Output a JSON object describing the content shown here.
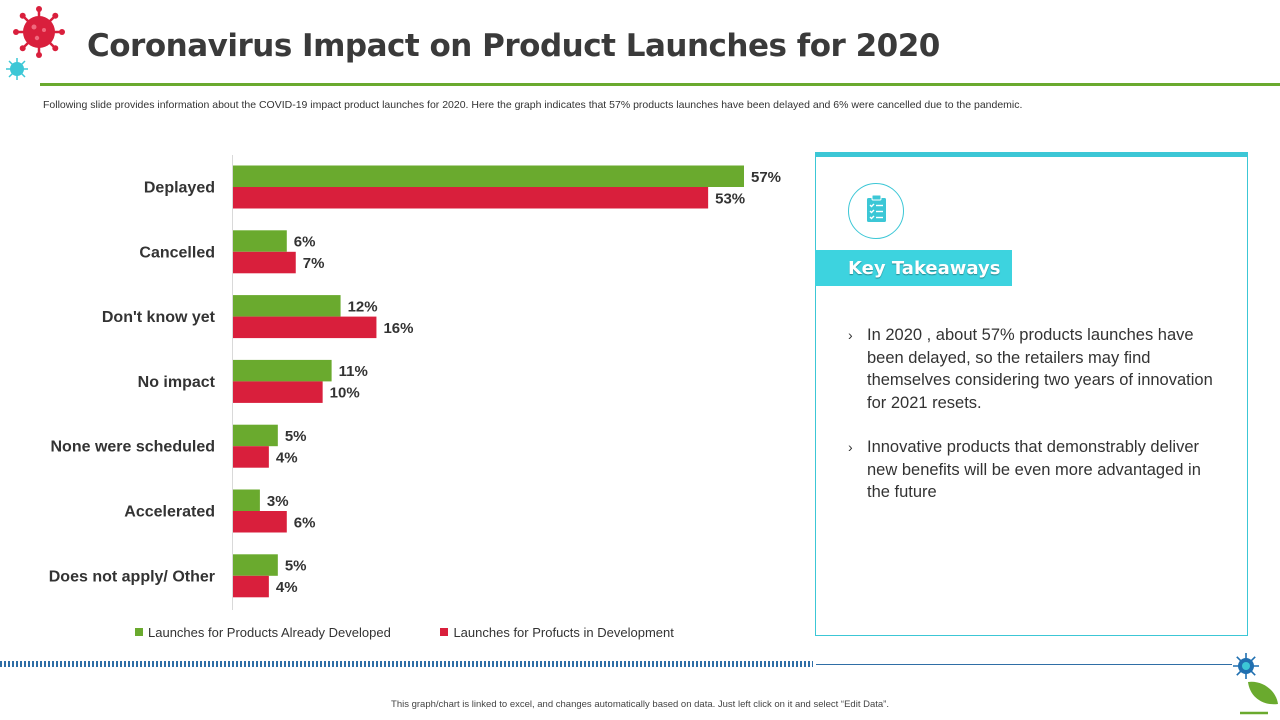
{
  "header": {
    "title": "Coronavirus Impact on Product Launches for 2020",
    "description": "Following slide provides information about the COVID-19 impact product launches for 2020. Here  the graph indicates that 57% products launches have been delayed and 6% were  cancelled due to the pandemic."
  },
  "chart_data": {
    "type": "bar",
    "orientation": "horizontal",
    "categories": [
      "Deplayed",
      "Cancelled",
      "Don't know yet",
      "No impact",
      "None were scheduled",
      "Accelerated",
      "Does not apply/ Other"
    ],
    "series": [
      {
        "name": "Launches for Products Already Developed",
        "color": "#6aaa2e",
        "values": [
          57,
          6,
          12,
          11,
          5,
          3,
          5
        ]
      },
      {
        "name": "Launches for Profucts in Development",
        "color": "#d91f3c",
        "values": [
          53,
          7,
          16,
          10,
          4,
          6,
          4
        ]
      }
    ],
    "value_suffix": "%",
    "legend_position": "bottom",
    "grid": false
  },
  "legend": {
    "items": [
      {
        "label": "Launches for Products Already Developed",
        "color": "#6aaa2e"
      },
      {
        "label": "Launches for Profucts in Development",
        "color": "#d91f3c"
      }
    ]
  },
  "takeaways": {
    "heading": "Key Takeaways",
    "icon": "clipboard-checklist-icon",
    "accent_color": "#3cc7d6",
    "bullets": [
      "In 2020 , about 57% products launches have been delayed, so the retailers may find themselves considering two years of innovation for 2021 resets.",
      "Innovative products that demonstrably deliver new benefits will be even more advantaged in the future"
    ]
  },
  "footer": {
    "note": "This graph/chart is linked to excel, and changes automatically based on data. Just left click on it and select “Edit Data”."
  }
}
